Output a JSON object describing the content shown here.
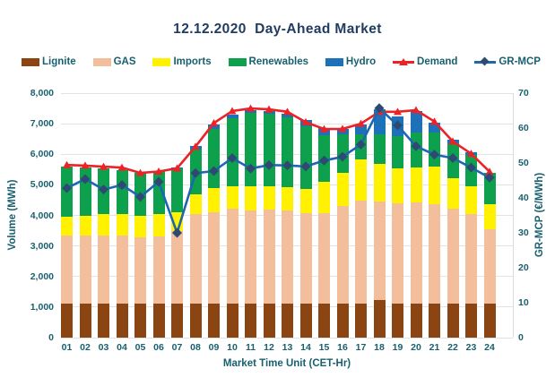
{
  "title": "12.12.2020  Day-Ahead Market",
  "colors": {
    "title_text": "#1F3C5F",
    "axis_text": "#19606F",
    "grid": "#E3E3E3",
    "background": "#FFFFFF",
    "lignite": "#8B4513",
    "gas": "#F2BE9B",
    "imports": "#FFF100",
    "renewables": "#0DA14D",
    "hydro": "#1C71B8",
    "demand": "#EC2227",
    "gr_mcp_line": "#1E66B0",
    "gr_mcp_marker": "#2E4972"
  },
  "legend": [
    {
      "label": "Lignite",
      "swatch": "rect",
      "color": "#8B4513"
    },
    {
      "label": "GAS",
      "swatch": "rect",
      "color": "#F2BE9B"
    },
    {
      "label": "Imports",
      "swatch": "rect",
      "color": "#FFF100"
    },
    {
      "label": "Renewables",
      "swatch": "rect",
      "color": "#0DA14D"
    },
    {
      "label": "Hydro",
      "swatch": "rect",
      "color": "#1C71B8"
    },
    {
      "label": "Demand",
      "swatch": "line-triangle",
      "color": "#EC2227",
      "marker_color": "#EC2227"
    },
    {
      "label": "GR-MCP",
      "swatch": "line-diamond",
      "color": "#1E66B0",
      "marker_color": "#2E4972"
    }
  ],
  "axes": {
    "left": {
      "title": "Volume (MWh)",
      "ticks": [
        "8,000",
        "7,000",
        "6,000",
        "5,000",
        "4,000",
        "3,000",
        "2,000",
        "1,000",
        "0"
      ]
    },
    "right": {
      "title": "GR-MCP (€/MWh)",
      "ticks": [
        "70",
        "60",
        "50",
        "40",
        "30",
        "20",
        "10",
        "0"
      ]
    },
    "x": {
      "title": "Market Time Unit (CET-Hr)"
    }
  },
  "chart_data": {
    "type": "bar",
    "subtype": "stacked-bars-with-lines",
    "title": "12.12.2020  Day-Ahead Market",
    "xlabel": "Market Time Unit (CET-Hr)",
    "ylabel_left": "Volume (MWh)",
    "ylabel_right": "GR-MCP (€/MWh)",
    "ylim_left": [
      0,
      8000
    ],
    "ylim_right": [
      0,
      70
    ],
    "grid": "horizontal",
    "legend_position": "top",
    "categories": [
      "01",
      "02",
      "03",
      "04",
      "05",
      "06",
      "07",
      "08",
      "09",
      "10",
      "11",
      "12",
      "13",
      "14",
      "15",
      "16",
      "17",
      "18",
      "19",
      "20",
      "21",
      "22",
      "23",
      "24"
    ],
    "bar_series": [
      {
        "name": "Lignite",
        "color": "#8B4513",
        "values": [
          1100,
          1100,
          1100,
          1100,
          1100,
          1100,
          1100,
          1100,
          1100,
          1100,
          1100,
          1100,
          1100,
          1100,
          1100,
          1100,
          1100,
          1225,
          1100,
          1100,
          1100,
          1100,
          1100,
          1100
        ]
      },
      {
        "name": "GAS",
        "color": "#F2BE9B",
        "values": [
          2230,
          2230,
          2250,
          2230,
          2180,
          2200,
          2400,
          2945,
          3010,
          3110,
          3060,
          3080,
          3060,
          2965,
          2980,
          3210,
          3375,
          3230,
          3310,
          3325,
          3275,
          3110,
          2940,
          2445
        ]
      },
      {
        "name": "Imports",
        "color": "#FFF100",
        "values": [
          635,
          665,
          695,
          715,
          715,
          730,
          600,
          655,
          785,
          755,
          805,
          765,
          755,
          805,
          1010,
          1075,
          1370,
          1230,
          1120,
          1155,
          1225,
          1000,
          905,
          815
        ]
      },
      {
        "name": "Renewables",
        "color": "#0DA14D",
        "values": [
          1645,
          1585,
          1490,
          1445,
          1390,
          1415,
          1430,
          1440,
          1930,
          2215,
          2380,
          2385,
          2305,
          2040,
          1540,
          1265,
          815,
          980,
          1060,
          1130,
          1105,
          1155,
          1045,
          1045
        ]
      },
      {
        "name": "Hydro",
        "color": "#1C71B8",
        "values": [
          0,
          0,
          0,
          0,
          0,
          0,
          50,
          125,
          145,
          115,
          100,
          80,
          120,
          200,
          225,
          180,
          310,
          800,
          660,
          715,
          325,
          100,
          80,
          0
        ]
      }
    ],
    "line_series": [
      {
        "name": "Demand",
        "axis": "left",
        "color": "#EC2227",
        "marker": "triangle",
        "values": [
          5650,
          5630,
          5595,
          5565,
          5390,
          5435,
          5540,
          6250,
          7020,
          7415,
          7500,
          7470,
          7390,
          7050,
          6825,
          6830,
          7000,
          7390,
          7390,
          7445,
          7070,
          6420,
          6020,
          5430
        ]
      },
      {
        "name": "GR-MCP",
        "axis": "right",
        "color": "#1E66B0",
        "marker": "diamond",
        "marker_color": "#2E4972",
        "values": [
          42.8,
          45.4,
          42.4,
          43.7,
          40.3,
          44.6,
          30.0,
          47.1,
          47.7,
          51.4,
          48.4,
          49.4,
          49.3,
          49.0,
          50.7,
          51.8,
          55.3,
          65.7,
          60.8,
          54.8,
          52.4,
          51.4,
          48.7,
          45.8
        ]
      }
    ]
  }
}
